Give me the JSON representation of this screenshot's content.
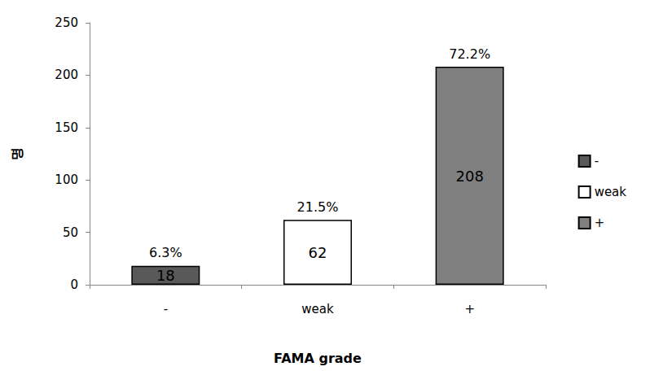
{
  "chart_data": {
    "type": "bar",
    "x_label": "FAMA grade",
    "y_label": "명",
    "categories": [
      "-",
      "weak",
      "+"
    ],
    "values": [
      18,
      62,
      208
    ],
    "colors": [
      "#595959",
      "#ffffff",
      "#808080"
    ],
    "annotations": [
      "6.3%",
      "21.5%",
      "72.2%"
    ],
    "ylim": [
      0,
      250
    ],
    "yticks": [
      0,
      50,
      100,
      150,
      200,
      250
    ],
    "grid": false,
    "legend": "right",
    "data_labels": true
  }
}
